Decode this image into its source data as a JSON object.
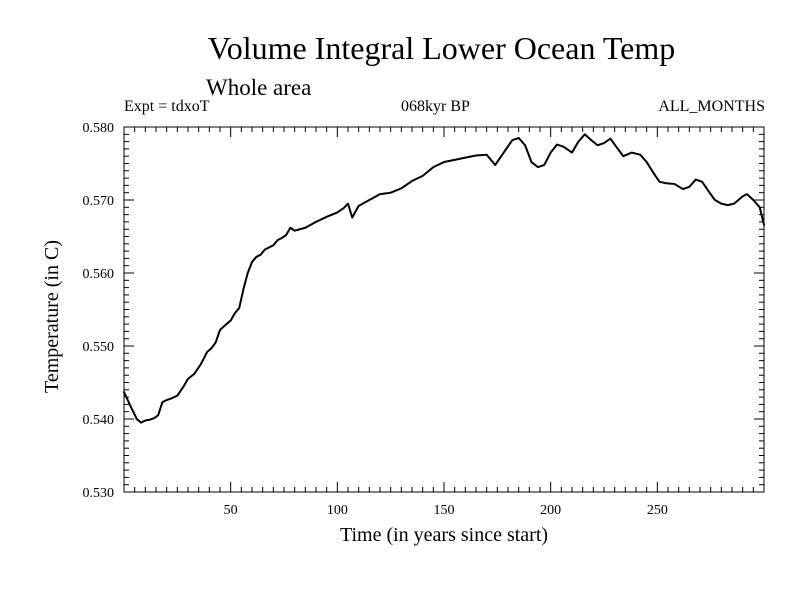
{
  "chart_data": {
    "type": "line",
    "title": "Volume Integral Lower Ocean Temp",
    "subtitle": "Whole area",
    "experiment_label": "Expt = tdxoT",
    "period_label": "068kyr BP",
    "months_label": "ALL_MONTHS",
    "xlabel": "Time (in years since start)",
    "ylabel": "Temperature (in C)",
    "xlim": [
      0,
      300
    ],
    "ylim": [
      0.53,
      0.58
    ],
    "xticks": [
      50,
      100,
      150,
      200,
      250
    ],
    "xtick_labels": [
      "50",
      "100",
      "150",
      "200",
      "250"
    ],
    "yticks": [
      0.53,
      0.54,
      0.55,
      0.56,
      0.57,
      0.58
    ],
    "ytick_labels": [
      "0.530",
      "0.540",
      "0.550",
      "0.560",
      "0.570",
      "0.580"
    ],
    "grid": false,
    "series": [
      {
        "color": "#000000",
        "x": [
          0,
          3,
          6,
          8,
          10,
          12,
          14,
          16,
          18,
          20,
          22,
          25,
          28,
          30,
          33,
          36,
          39,
          41,
          43,
          45,
          48,
          50,
          52,
          54,
          56,
          58,
          60,
          62,
          64,
          66,
          68,
          70,
          72,
          74,
          76,
          78,
          80,
          85,
          90,
          95,
          100,
          103,
          105,
          107,
          110,
          115,
          120,
          125,
          130,
          135,
          140,
          145,
          150,
          155,
          160,
          165,
          170,
          174,
          178,
          182,
          185,
          188,
          191,
          194,
          197,
          200,
          203,
          206,
          210,
          213,
          216,
          219,
          222,
          225,
          228,
          231,
          234,
          238,
          242,
          245,
          248,
          251,
          254,
          258,
          262,
          265,
          268,
          271,
          274,
          277,
          280,
          283,
          286,
          288,
          290,
          292,
          295,
          298,
          300
        ],
        "y": [
          0.5437,
          0.5418,
          0.54,
          0.5395,
          0.5398,
          0.5399,
          0.5401,
          0.5405,
          0.5423,
          0.5426,
          0.5428,
          0.5432,
          0.5445,
          0.5455,
          0.5462,
          0.5475,
          0.5492,
          0.5497,
          0.5505,
          0.5522,
          0.553,
          0.5535,
          0.5545,
          0.5552,
          0.5578,
          0.56,
          0.5615,
          0.5622,
          0.5625,
          0.5632,
          0.5635,
          0.5638,
          0.5645,
          0.5648,
          0.5652,
          0.5662,
          0.5658,
          0.5662,
          0.567,
          0.5677,
          0.5683,
          0.5689,
          0.5695,
          0.5676,
          0.5692,
          0.57,
          0.5708,
          0.571,
          0.5716,
          0.5726,
          0.5733,
          0.5745,
          0.5752,
          0.5755,
          0.5758,
          0.5761,
          0.5762,
          0.5748,
          0.5765,
          0.5782,
          0.5785,
          0.5775,
          0.5752,
          0.5745,
          0.5748,
          0.5765,
          0.5776,
          0.5773,
          0.5765,
          0.578,
          0.579,
          0.5782,
          0.5775,
          0.5778,
          0.5784,
          0.5772,
          0.576,
          0.5765,
          0.5762,
          0.5752,
          0.5738,
          0.5725,
          0.5723,
          0.5722,
          0.5715,
          0.5718,
          0.5728,
          0.5725,
          0.5712,
          0.57,
          0.5695,
          0.5693,
          0.5695,
          0.57,
          0.5705,
          0.5708,
          0.57,
          0.569,
          0.5666
        ]
      }
    ]
  }
}
